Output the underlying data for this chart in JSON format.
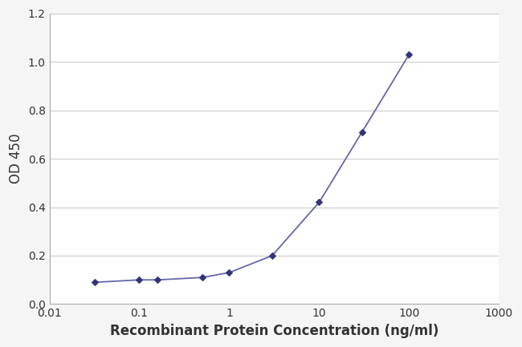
{
  "x": [
    0.032,
    0.1,
    0.16,
    0.5,
    1.0,
    3.0,
    10.0,
    30.0,
    100.0
  ],
  "y": [
    0.09,
    0.1,
    0.1,
    0.11,
    0.13,
    0.2,
    0.42,
    0.71,
    1.03
  ],
  "line_color": "#6666aa",
  "marker_color": "#333377",
  "marker_style": "D",
  "marker_size": 4,
  "line_width": 1.3,
  "xlabel": "Recombinant Protein Concentration (ng/ml)",
  "ylabel": "OD 450",
  "ylim": [
    0,
    1.2
  ],
  "yticks": [
    0,
    0.2,
    0.4,
    0.6,
    0.8,
    1.0,
    1.2
  ],
  "plot_bg_color": "#ffffff",
  "grid_color": "#cccccc",
  "xlabel_fontsize": 12,
  "ylabel_fontsize": 12,
  "tick_fontsize": 10,
  "label_color": "#333333",
  "figure_bg": "#f5f5f5",
  "spine_color": "#aaaaaa",
  "xtick_labels": [
    "0.01",
    "0.1",
    "1",
    "10",
    "100",
    "1000"
  ],
  "xtick_positions": [
    0.01,
    0.1,
    1,
    10,
    100,
    1000
  ]
}
